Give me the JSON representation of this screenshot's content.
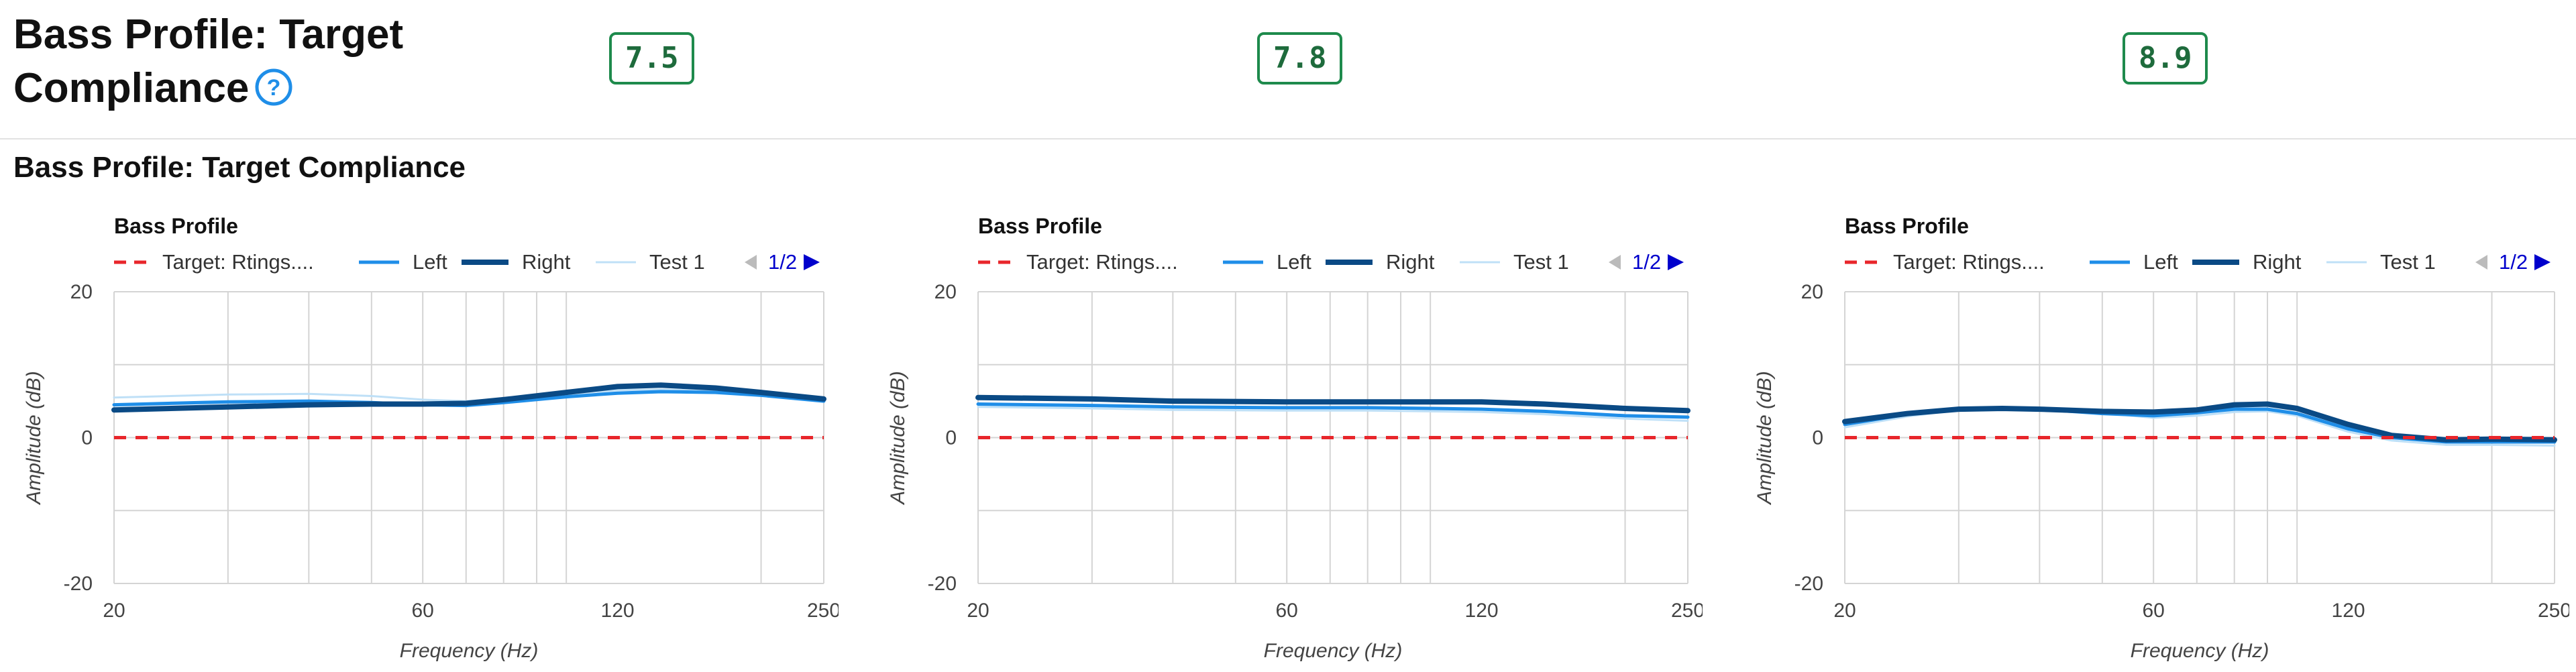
{
  "page": {
    "title": "Bass Profile: Target Compliance",
    "help_icon": "question-circle-icon",
    "scores": [
      "7.5",
      "7.8",
      "8.9"
    ],
    "section_title": "Bass Profile: Target Compliance"
  },
  "colors": {
    "target": "#e8262b",
    "left": "#1f8ee8",
    "right": "#0a4a85",
    "test": "#bfe0f7",
    "grid": "#d4d4d4",
    "score_border": "#1e8a4c",
    "pager_active": "#0000cc",
    "pager_inactive": "#bbbbbb"
  },
  "chart_data": [
    {
      "type": "line",
      "title": "Bass Profile",
      "xlabel": "Frequency (Hz)",
      "ylabel": "Amplitude (dB)",
      "x_scale": "log",
      "xlim": [
        20,
        250
      ],
      "ylim": [
        -20,
        20
      ],
      "x_tick_labels": [
        "20",
        "60",
        "120",
        "250"
      ],
      "y_tick_labels": [
        "20",
        "0",
        "-20"
      ],
      "legend": {
        "placement": "top-left",
        "page": "1/2",
        "entries": [
          "Target: Rtings....",
          "Left",
          "Right",
          "Test 1"
        ]
      },
      "series": [
        {
          "name": "Target: Rtings....",
          "x": [
            20,
            250
          ],
          "values": [
            0,
            0
          ]
        },
        {
          "name": "Left",
          "x": [
            20,
            30,
            40,
            50,
            60,
            70,
            80,
            100,
            120,
            140,
            170,
            200,
            250
          ],
          "values": [
            4.5,
            4.9,
            5.0,
            4.8,
            4.5,
            4.4,
            4.8,
            5.6,
            6.1,
            6.3,
            6.2,
            5.8,
            5.0
          ]
        },
        {
          "name": "Right",
          "x": [
            20,
            30,
            40,
            50,
            60,
            70,
            80,
            100,
            120,
            140,
            170,
            200,
            250
          ],
          "values": [
            3.8,
            4.2,
            4.5,
            4.6,
            4.6,
            4.7,
            5.2,
            6.2,
            7.0,
            7.2,
            6.8,
            6.2,
            5.3
          ]
        },
        {
          "name": "Test 1",
          "x": [
            20,
            30,
            40,
            50,
            60,
            70,
            80,
            100,
            120,
            140,
            170,
            200,
            250
          ],
          "values": [
            5.5,
            5.9,
            6.0,
            5.7,
            5.2,
            5.0,
            5.3,
            6.0,
            6.5,
            6.6,
            6.4,
            5.9,
            5.2
          ]
        }
      ]
    },
    {
      "type": "line",
      "title": "Bass Profile",
      "xlabel": "Frequency (Hz)",
      "ylabel": "Amplitude (dB)",
      "x_scale": "log",
      "xlim": [
        20,
        250
      ],
      "ylim": [
        -20,
        20
      ],
      "x_tick_labels": [
        "20",
        "60",
        "120",
        "250"
      ],
      "y_tick_labels": [
        "20",
        "0",
        "-20"
      ],
      "legend": {
        "placement": "top-left",
        "page": "1/2",
        "entries": [
          "Target: Rtings....",
          "Left",
          "Right",
          "Test 1"
        ]
      },
      "series": [
        {
          "name": "Target: Rtings....",
          "x": [
            20,
            250
          ],
          "values": [
            0,
            0
          ]
        },
        {
          "name": "Left",
          "x": [
            20,
            30,
            40,
            60,
            80,
            100,
            120,
            150,
            200,
            250
          ],
          "values": [
            4.6,
            4.4,
            4.2,
            4.1,
            4.1,
            4.0,
            3.9,
            3.6,
            3.0,
            2.8
          ]
        },
        {
          "name": "Right",
          "x": [
            20,
            30,
            40,
            60,
            80,
            100,
            120,
            150,
            200,
            250
          ],
          "values": [
            5.5,
            5.3,
            5.0,
            4.9,
            4.9,
            4.9,
            4.9,
            4.6,
            4.0,
            3.7
          ]
        },
        {
          "name": "Test 1",
          "x": [
            20,
            30,
            40,
            60,
            80,
            100,
            120,
            150,
            200,
            250
          ],
          "values": [
            4.2,
            4.0,
            3.8,
            3.7,
            3.7,
            3.6,
            3.5,
            3.2,
            2.6,
            2.3
          ]
        }
      ]
    },
    {
      "type": "line",
      "title": "Bass Profile",
      "xlabel": "Frequency (Hz)",
      "ylabel": "Amplitude (dB)",
      "x_scale": "log",
      "xlim": [
        20,
        250
      ],
      "ylim": [
        -20,
        20
      ],
      "x_tick_labels": [
        "20",
        "60",
        "120",
        "250"
      ],
      "y_tick_labels": [
        "20",
        "0",
        "-20"
      ],
      "legend": {
        "placement": "top-left",
        "page": "1/2",
        "entries": [
          "Target: Rtings....",
          "Left",
          "Right",
          "Test 1"
        ]
      },
      "series": [
        {
          "name": "Target: Rtings....",
          "x": [
            20,
            250
          ],
          "values": [
            0,
            0
          ]
        },
        {
          "name": "Left",
          "x": [
            20,
            25,
            30,
            35,
            40,
            50,
            60,
            70,
            80,
            90,
            100,
            120,
            140,
            170,
            200,
            250
          ],
          "values": [
            1.8,
            3.2,
            3.8,
            4.0,
            3.9,
            3.3,
            3.0,
            3.4,
            3.9,
            3.9,
            3.3,
            1.2,
            0.0,
            -0.6,
            -0.6,
            -0.6
          ]
        },
        {
          "name": "Right",
          "x": [
            20,
            25,
            30,
            35,
            40,
            50,
            60,
            70,
            80,
            90,
            100,
            120,
            140,
            170,
            200,
            250
          ],
          "values": [
            2.2,
            3.3,
            3.9,
            4.0,
            3.9,
            3.6,
            3.5,
            3.8,
            4.5,
            4.6,
            4.0,
            1.8,
            0.3,
            -0.3,
            -0.2,
            -0.3
          ]
        },
        {
          "name": "Test 1",
          "x": [
            20,
            25,
            30,
            35,
            40,
            50,
            60,
            70,
            80,
            90,
            100,
            120,
            140,
            170,
            200,
            250
          ],
          "values": [
            1.4,
            2.9,
            3.8,
            4.2,
            4.1,
            3.4,
            2.7,
            3.0,
            3.5,
            3.6,
            3.0,
            0.8,
            -0.4,
            -1.0,
            -1.0,
            -1.1
          ]
        }
      ]
    }
  ]
}
